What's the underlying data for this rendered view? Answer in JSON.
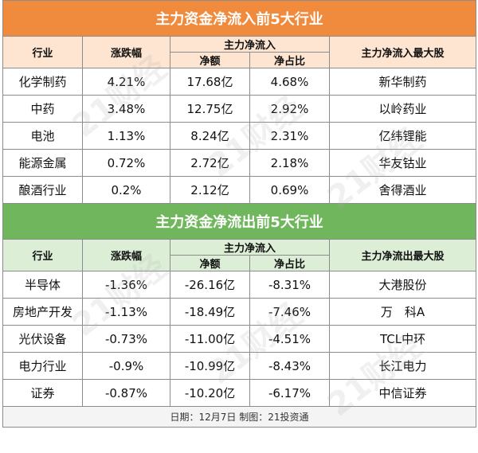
{
  "inflow": {
    "title": "主力资金净流入前5大行业",
    "headers": {
      "industry": "行业",
      "change": "涨跌幅",
      "net_flow": "主力净流入",
      "net_amount": "净额",
      "net_ratio": "净占比",
      "top_stock": "主力净流入最大股"
    },
    "rows": [
      {
        "industry": "化学制药",
        "change": "4.21%",
        "amount": "17.68亿",
        "ratio": "4.68%",
        "stock": "新华制药"
      },
      {
        "industry": "中药",
        "change": "3.48%",
        "amount": "12.75亿",
        "ratio": "2.92%",
        "stock": "以岭药业"
      },
      {
        "industry": "电池",
        "change": "1.13%",
        "amount": "8.24亿",
        "ratio": "2.31%",
        "stock": "亿纬锂能"
      },
      {
        "industry": "能源金属",
        "change": "0.72%",
        "amount": "2.72亿",
        "ratio": "2.18%",
        "stock": "华友钴业"
      },
      {
        "industry": "酿酒行业",
        "change": "0.2%",
        "amount": "2.12亿",
        "ratio": "0.69%",
        "stock": "舍得酒业"
      }
    ]
  },
  "outflow": {
    "title": "主力资金净流出前5大行业",
    "headers": {
      "industry": "行业",
      "change": "涨跌幅",
      "net_flow": "主力净流入",
      "net_amount": "净额",
      "net_ratio": "净占比",
      "top_stock": "主力净流出最大股"
    },
    "rows": [
      {
        "industry": "半导体",
        "change": "-1.36%",
        "amount": "-26.16亿",
        "ratio": "-8.31%",
        "stock": "大港股份"
      },
      {
        "industry": "房地产开发",
        "change": "-1.13%",
        "amount": "-18.49亿",
        "ratio": "-7.46%",
        "stock": "万　科A"
      },
      {
        "industry": "光伏设备",
        "change": "-0.73%",
        "amount": "-11.00亿",
        "ratio": "-4.51%",
        "stock": "TCL中环"
      },
      {
        "industry": "电力行业",
        "change": "-0.9%",
        "amount": "-10.99亿",
        "ratio": "-8.43%",
        "stock": "长江电力"
      },
      {
        "industry": "证券",
        "change": "-0.87%",
        "amount": "-10.20亿",
        "ratio": "-6.17%",
        "stock": "中信证券"
      }
    ]
  },
  "footer": "日期：12月7日  制图：21投资通",
  "watermark_text": "21财经",
  "colors": {
    "orange": "#f08a3c",
    "orange_light": "#fde5d1",
    "green": "#6fb65d",
    "green_light": "#ddeed7"
  }
}
